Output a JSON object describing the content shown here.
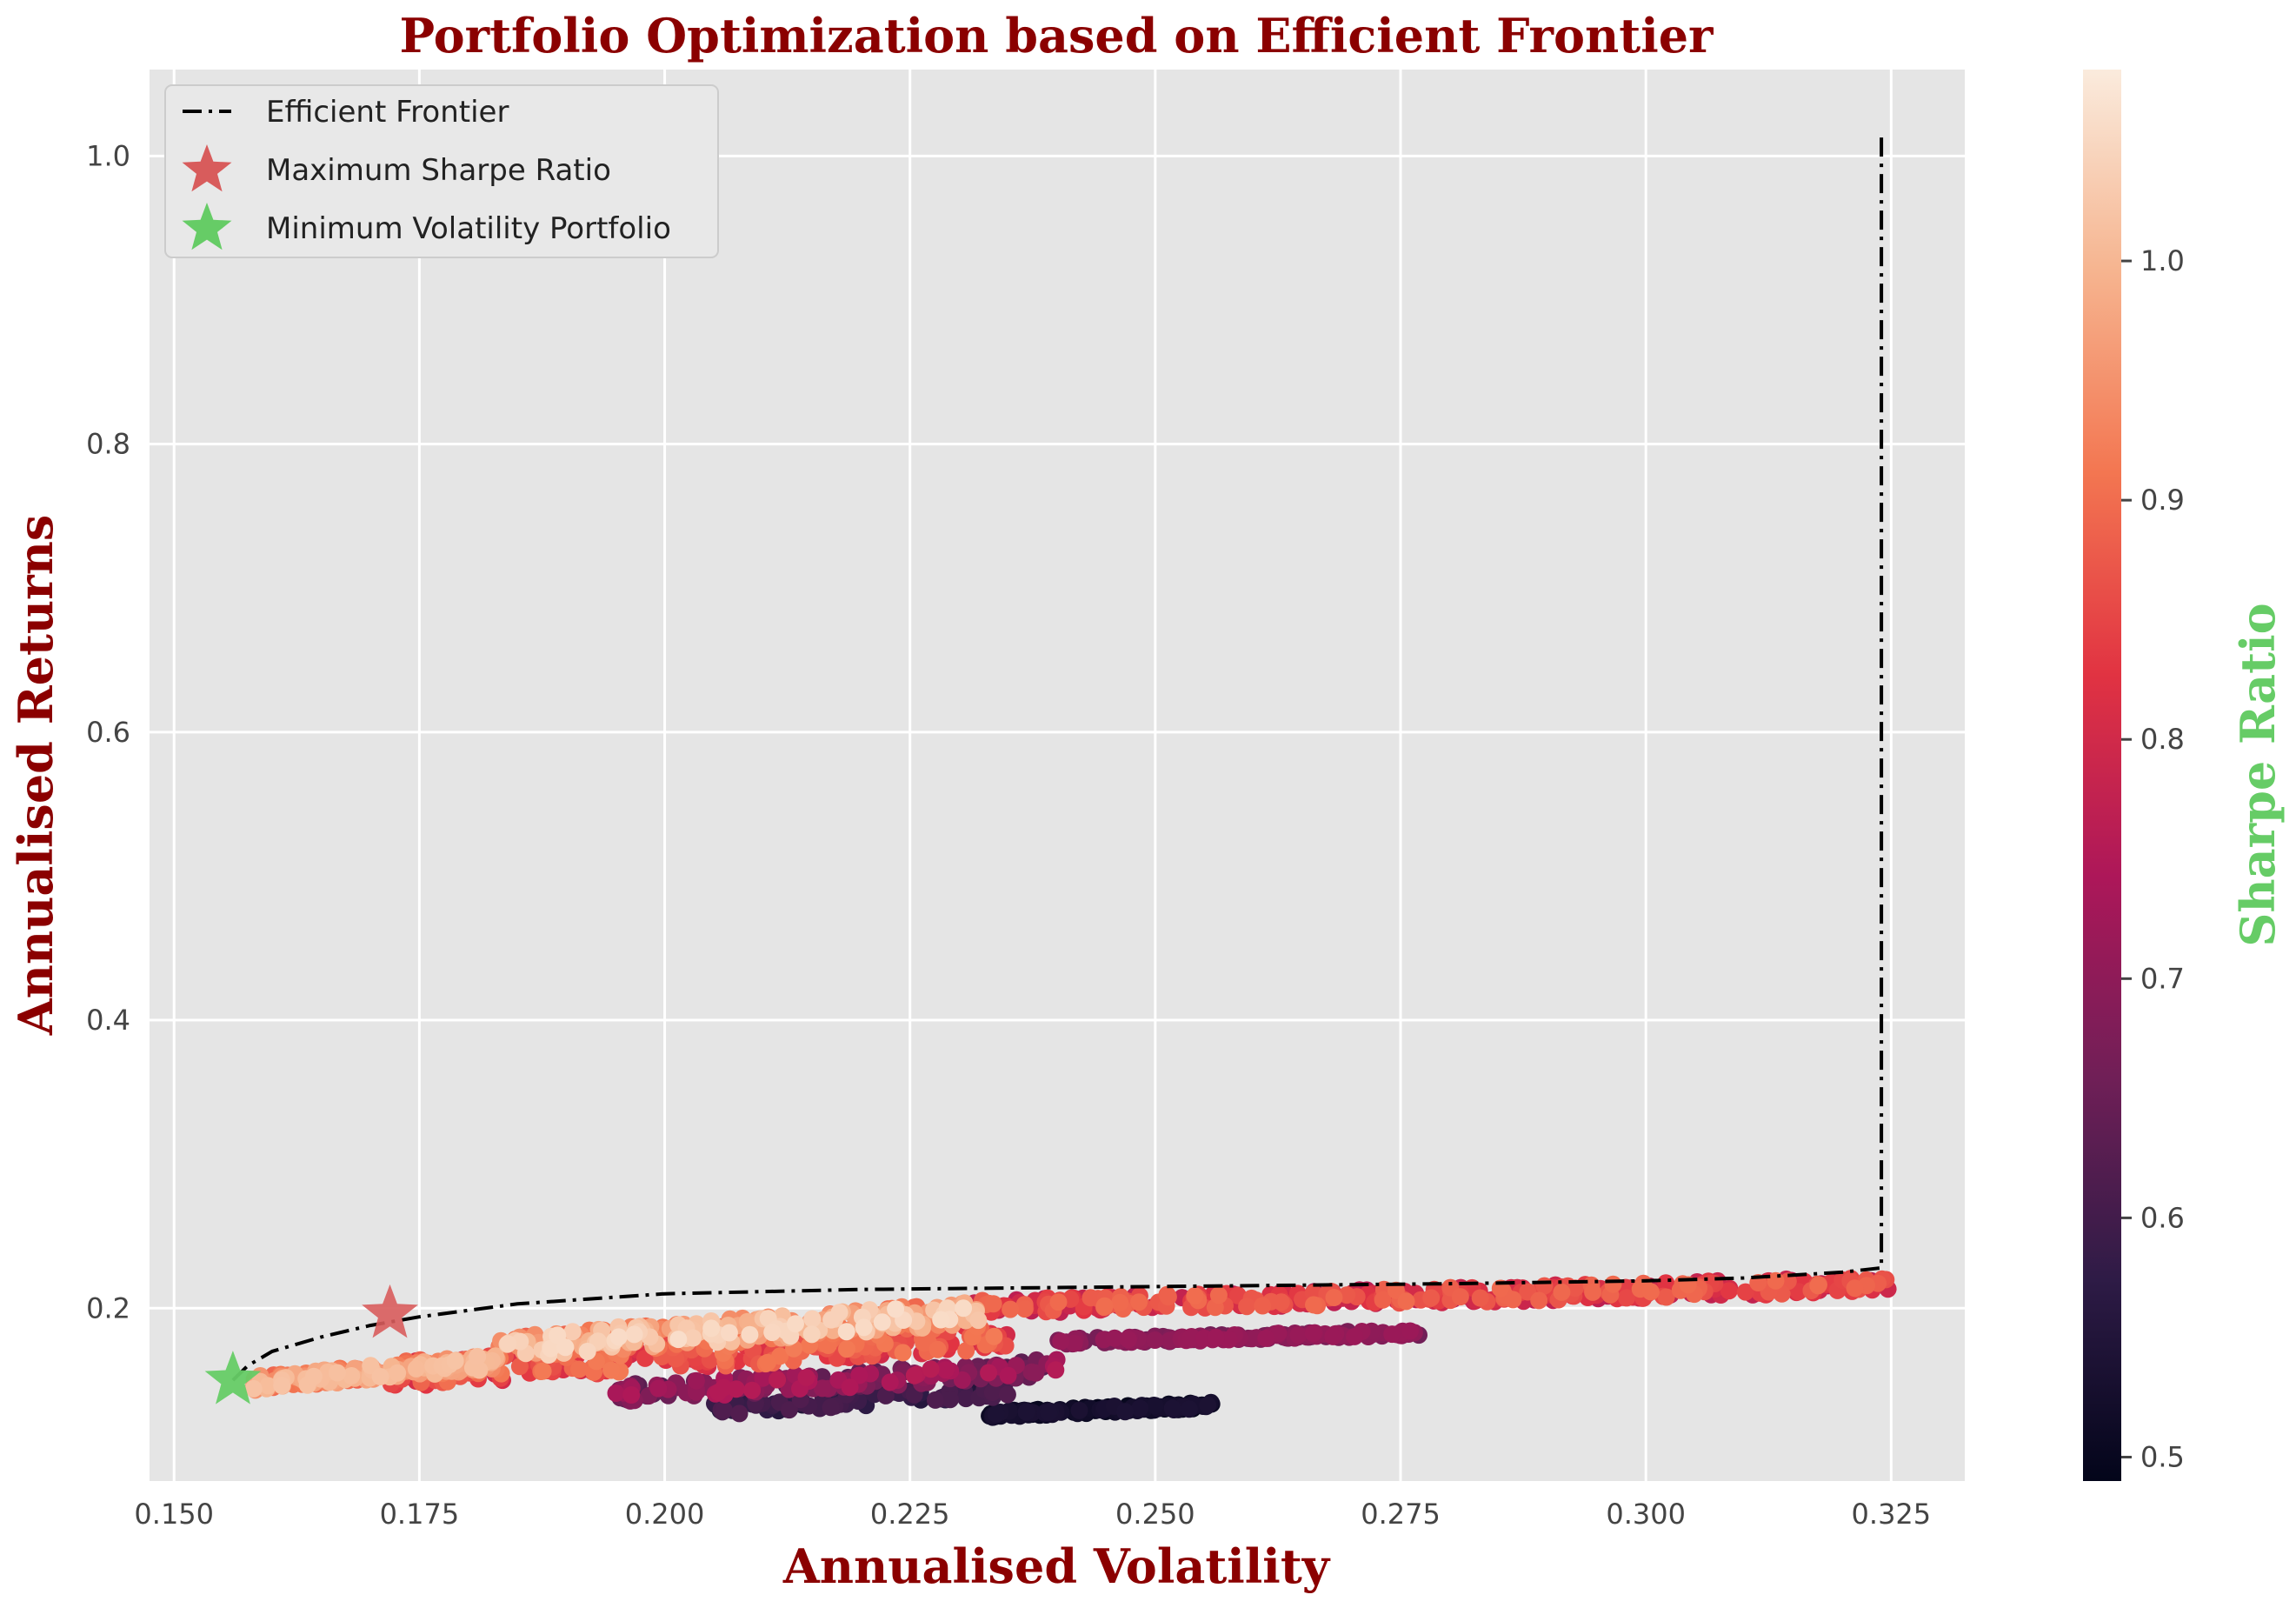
{
  "chart_data": {
    "type": "scatter",
    "title": "Portfolio Optimization based on Efficient Frontier",
    "xlabel": "Annualised Volatility",
    "ylabel": "Annualised Returns",
    "xlim": [
      0.1475,
      0.3325
    ],
    "ylim": [
      0.08,
      1.06
    ],
    "xticks": [
      "0.150",
      "0.175",
      "0.200",
      "0.225",
      "0.250",
      "0.275",
      "0.300",
      "0.325"
    ],
    "xtick_values": [
      0.15,
      0.175,
      0.2,
      0.225,
      0.25,
      0.275,
      0.3,
      0.325
    ],
    "yticks": [
      "0.2",
      "0.4",
      "0.6",
      "0.8",
      "1.0"
    ],
    "ytick_values": [
      0.2,
      0.4,
      0.6,
      0.8,
      1.0
    ],
    "grid": true,
    "background": "#e5e5e5",
    "legend_position": "top-left",
    "colorbar": {
      "label": "Sharpe Ratio",
      "range": [
        0.49,
        1.08
      ],
      "ticks": [
        "0.5",
        "0.6",
        "0.7",
        "0.8",
        "0.9",
        "1.0"
      ],
      "tick_values": [
        0.5,
        0.6,
        0.7,
        0.8,
        0.9,
        1.0
      ],
      "colors": [
        "#03051a",
        "#2e1b46",
        "#701f57",
        "#ad1759",
        "#e13342",
        "#f37651",
        "#f6b48f",
        "#faebdd"
      ]
    },
    "series": [
      {
        "name": "Efficient Frontier",
        "kind": "line",
        "style": "dashdot",
        "color": "#000000",
        "x": [
          0.156,
          0.1575,
          0.16,
          0.165,
          0.17,
          0.175,
          0.185,
          0.2,
          0.22,
          0.25,
          0.28,
          0.3,
          0.31,
          0.32,
          0.324,
          0.324,
          0.324
        ],
        "y": [
          0.15,
          0.16,
          0.17,
          0.18,
          0.188,
          0.194,
          0.203,
          0.21,
          0.213,
          0.215,
          0.217,
          0.219,
          0.221,
          0.225,
          0.228,
          0.5,
          1.017
        ]
      },
      {
        "name": "Maximum Sharpe Ratio",
        "kind": "star",
        "color": "#d85c5c",
        "x": [
          0.172
        ],
        "y": [
          0.196
        ]
      },
      {
        "name": "Minimum Volatility Portfolio",
        "kind": "star",
        "color": "#66cc66",
        "x": [
          0.156
        ],
        "y": [
          0.15
        ]
      }
    ],
    "clusters": [
      {
        "x_range": [
          0.158,
          0.183
        ],
        "y_range": [
          0.143,
          0.168
        ],
        "sharpe": [
          0.88,
          1.02
        ],
        "n": 240
      },
      {
        "x_range": [
          0.183,
          0.232
        ],
        "y_range": [
          0.165,
          0.205
        ],
        "sharpe": [
          0.88,
          1.06
        ],
        "n": 320
      },
      {
        "x_range": [
          0.172,
          0.235
        ],
        "y_range": [
          0.145,
          0.19
        ],
        "sharpe": [
          0.8,
          0.92
        ],
        "n": 260
      },
      {
        "x_range": [
          0.23,
          0.325
        ],
        "y_range": [
          0.195,
          0.222
        ],
        "sharpe": [
          0.76,
          0.9
        ],
        "n": 380
      },
      {
        "x_range": [
          0.24,
          0.277
        ],
        "y_range": [
          0.175,
          0.185
        ],
        "sharpe": [
          0.66,
          0.72
        ],
        "n": 150
      },
      {
        "x_range": [
          0.195,
          0.24
        ],
        "y_range": [
          0.135,
          0.165
        ],
        "sharpe": [
          0.62,
          0.76
        ],
        "n": 160
      },
      {
        "x_range": [
          0.205,
          0.235
        ],
        "y_range": [
          0.125,
          0.148
        ],
        "sharpe": [
          0.55,
          0.62
        ],
        "n": 90
      },
      {
        "x_range": [
          0.233,
          0.256
        ],
        "y_range": [
          0.124,
          0.135
        ],
        "sharpe": [
          0.49,
          0.54
        ],
        "n": 130
      }
    ]
  }
}
